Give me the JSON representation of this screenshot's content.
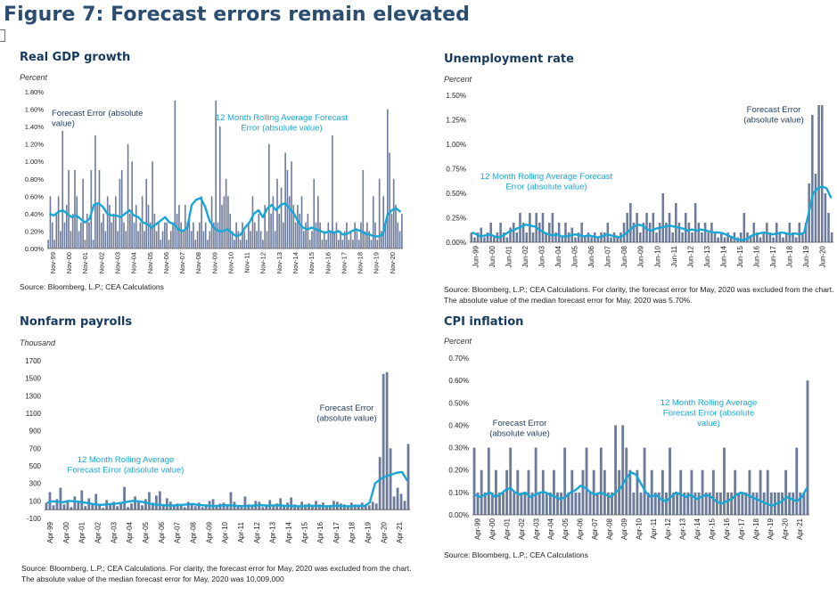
{
  "figure_title": "Figure 7: Forecast errors remain elevated",
  "colors": {
    "bars": "#6d7b9a",
    "line": "#17a6d6",
    "title": "#163a5f",
    "annotation": "#17a6d6"
  },
  "chart_data": [
    {
      "id": "gdp",
      "type": "bar",
      "title": "Real GDP growth",
      "unit_label": "Percent",
      "ylim": [
        0,
        1.8
      ],
      "y_ticks": [
        "0.00%",
        "0.20%",
        "0.40%",
        "0.60%",
        "0.80%",
        "1.00%",
        "1.20%",
        "1.40%",
        "1.60%",
        "1.80%"
      ],
      "x_tick_labels": [
        "Nov-99",
        "Nov-00",
        "Nov-01",
        "Nov-02",
        "Nov-03",
        "Nov-04",
        "Nov-05",
        "Nov-06",
        "Nov-07",
        "Nov-08",
        "Nov-09",
        "Nov-10",
        "Nov-11",
        "Nov-12",
        "Nov-13",
        "Nov-14",
        "Nov-15",
        "Nov-16",
        "Nov-17",
        "Nov-18",
        "Nov-19",
        "Nov-20"
      ],
      "x_start": "1999-11",
      "x_end": "2021-04",
      "series": [
        {
          "name": "Forecast Error (absolute value)",
          "kind": "bar",
          "values": [
            0.1,
            0.6,
            0.3,
            0.1,
            0.4,
            0.6,
            0.2,
            1.35,
            0.3,
            0.5,
            0.9,
            0.2,
            0.4,
            0.9,
            0.6,
            0.2,
            0.3,
            0.8,
            0.1,
            0.4,
            0.3,
            0.9,
            0.1,
            1.3,
            0.5,
            0.9,
            0.3,
            0.4,
            0.2,
            0.6,
            0.5,
            0.3,
            0.4,
            0.6,
            0.2,
            0.8,
            0.9,
            0.3,
            0.2,
            1.2,
            0.4,
            1.0,
            0.3,
            0.5,
            0.2,
            0.3,
            0.6,
            0.2,
            0.8,
            0.5,
            0.3,
            1.0,
            0.4,
            0.2,
            0.3,
            0.1,
            0.2,
            0.3,
            0.3,
            0.1,
            0.2,
            0.3,
            1.7,
            0.4,
            0.5,
            0.3,
            0.2,
            0.5,
            0.3,
            0.4,
            0.2,
            0.3,
            0.1,
            0.2,
            0.3,
            0.6,
            0.2,
            0.3,
            0.1,
            0.2,
            0.6,
            0.3,
            1.7,
            0.3,
            1.4,
            0.5,
            0.6,
            0.8,
            0.6,
            0.4,
            0.2,
            0.1,
            0.3,
            0.2,
            0.1,
            0.3,
            0.2,
            0.1,
            0.3,
            0.2,
            0.6,
            0.3,
            0.2,
            0.4,
            0.2,
            0.1,
            0.5,
            0.2,
            1.2,
            0.4,
            0.6,
            0.2,
            0.8,
            0.4,
            0.7,
            0.3,
            1.1,
            0.9,
            0.6,
            1.0,
            0.5,
            0.3,
            0.5,
            0.4,
            0.6,
            0.2,
            0.3,
            0.4,
            0.1,
            0.2,
            0.8,
            0.3,
            0.6,
            0.3,
            0.1,
            0.2,
            0.1,
            0.3,
            0.2,
            1.3,
            0.2,
            0.3,
            0.1,
            0.2,
            0.1,
            0.2,
            0.3,
            0.1,
            0.2,
            0.1,
            0.3,
            0.2,
            0.1,
            0.3,
            0.9,
            0.2,
            0.3,
            0.2,
            0.1,
            0.6,
            0.3,
            0.1,
            0.8,
            0.2,
            0.6,
            0.3,
            1.6,
            1.1,
            0.4,
            0.8,
            0.5,
            0.3,
            0.2,
            0.4
          ]
        },
        {
          "name": "12 Month Rolling Average Forecast Error (absolute value)",
          "kind": "line",
          "values": [
            0.4,
            0.38,
            0.42,
            0.44,
            0.4,
            0.36,
            0.38,
            0.34,
            0.3,
            0.34,
            0.5,
            0.52,
            0.48,
            0.4,
            0.38,
            0.38,
            0.36,
            0.4,
            0.44,
            0.38,
            0.36,
            0.3,
            0.28,
            0.24,
            0.28,
            0.32,
            0.36,
            0.3,
            0.28,
            0.22,
            0.2,
            0.24,
            0.5,
            0.56,
            0.58,
            0.48,
            0.32,
            0.24,
            0.2,
            0.2,
            0.22,
            0.18,
            0.14,
            0.16,
            0.24,
            0.3,
            0.4,
            0.44,
            0.36,
            0.46,
            0.5,
            0.44,
            0.5,
            0.52,
            0.46,
            0.4,
            0.3,
            0.24,
            0.22,
            0.24,
            0.22,
            0.2,
            0.18,
            0.2,
            0.18,
            0.2,
            0.16,
            0.17,
            0.2,
            0.22,
            0.2,
            0.17,
            0.16,
            0.14,
            0.14,
            0.16,
            0.38,
            0.44,
            0.46,
            0.42
          ]
        }
      ],
      "annotations": {
        "bars": "Forecast Error (absolute\nvalue)",
        "line": "12 Month Rolling Average Forecast\nError (absolute value)"
      },
      "source": "Source: Bloomberg, L.P.; CEA Calculations"
    },
    {
      "id": "unemployment",
      "type": "bar",
      "title": "Unemployment rate",
      "unit_label": "Percent",
      "ylim": [
        0,
        1.5
      ],
      "y_ticks": [
        "0.00%",
        "0.25%",
        "0.50%",
        "0.75%",
        "1.00%",
        "1.25%",
        "1.50%"
      ],
      "x_tick_labels": [
        "Jun-99",
        "Jun-00",
        "Jun-01",
        "Jun-02",
        "Jun-03",
        "Jun-04",
        "Jun-05",
        "Jun-06",
        "Jun-07",
        "Jun-08",
        "Jun-09",
        "Jun-10",
        "Jun-11",
        "Jun-12",
        "Jun-13",
        "Jun-14",
        "Jun-15",
        "Jun-16",
        "Jun-17",
        "Jun-18",
        "Jun-19",
        "Jun-20"
      ],
      "x_start": "1999-06",
      "x_end": "2021-04",
      "series": [
        {
          "name": "Forecast Error (absolute value)",
          "kind": "bar",
          "values": [
            0.1,
            0.05,
            0.1,
            0.15,
            0.05,
            0.1,
            0.2,
            0.05,
            0.1,
            0.2,
            0.1,
            0.05,
            0.15,
            0.2,
            0.1,
            0.3,
            0.2,
            0.1,
            0.3,
            0.1,
            0.3,
            0.2,
            0.3,
            0.1,
            0.2,
            0.3,
            0.1,
            0.2,
            0.05,
            0.2,
            0.1,
            0.15,
            0.05,
            0.1,
            0.2,
            0.05,
            0.1,
            0.05,
            0.1,
            0.05,
            0.1,
            0.1,
            0.2,
            0.05,
            0.1,
            0.05,
            0.1,
            0.2,
            0.3,
            0.4,
            0.2,
            0.3,
            0.1,
            0.2,
            0.3,
            0.2,
            0.3,
            0.1,
            0.2,
            0.5,
            0.2,
            0.3,
            0.1,
            0.4,
            0.2,
            0.1,
            0.3,
            0.2,
            0.1,
            0.4,
            0.2,
            0.1,
            0.2,
            0.1,
            0.2,
            0.1,
            0.05,
            0.1,
            0.05,
            0.1,
            0.05,
            0.1,
            0.05,
            0.1,
            0.3,
            0.1,
            0.05,
            0.2,
            0.1,
            0.05,
            0.1,
            0.2,
            0.1,
            0.05,
            0.2,
            0.1,
            0.05,
            0.1,
            0.2,
            0.1,
            0.05,
            0.2,
            0.1,
            0.2,
            0.6,
            1.3,
            0.7,
            1.4,
            1.4,
            0.5,
            0.3,
            0.1
          ]
        },
        {
          "name": "12 Month Rolling Average Forecast Error (absolute value)",
          "kind": "line",
          "values": [
            0.1,
            0.08,
            0.06,
            0.07,
            0.08,
            0.06,
            0.05,
            0.07,
            0.1,
            0.12,
            0.14,
            0.16,
            0.18,
            0.17,
            0.16,
            0.13,
            0.1,
            0.08,
            0.07,
            0.08,
            0.06,
            0.06,
            0.07,
            0.08,
            0.07,
            0.06,
            0.07,
            0.06,
            0.05,
            0.06,
            0.08,
            0.07,
            0.06,
            0.05,
            0.08,
            0.12,
            0.16,
            0.18,
            0.17,
            0.13,
            0.12,
            0.14,
            0.15,
            0.16,
            0.17,
            0.16,
            0.15,
            0.14,
            0.12,
            0.13,
            0.12,
            0.13,
            0.12,
            0.11,
            0.1,
            0.1,
            0.09,
            0.07,
            0.05,
            0.03,
            0.02,
            0.03,
            0.06,
            0.08,
            0.09,
            0.1,
            0.09,
            0.08,
            0.09,
            0.1,
            0.09,
            0.08,
            0.09,
            0.08,
            0.1,
            0.3,
            0.5,
            0.55,
            0.57,
            0.55,
            0.45
          ]
        }
      ],
      "annotations": {
        "bars": "Forecast Error\n(absolute value)",
        "line": "12 Month Rolling Average Forecast\nError (absolute value)"
      },
      "source": "Source: Bloomberg, L.P.; CEA Calculations. For clarity, the forecast error for May, 2020 was excluded from the chart.\nThe absolute value of the median forecast error for May, 2020 was 5.70%."
    },
    {
      "id": "payrolls",
      "type": "bar",
      "title": "Nonfarm payrolls",
      "unit_label": "Thousand",
      "ylim": [
        -100,
        1700
      ],
      "y_ticks": [
        "-100",
        "100",
        "300",
        "500",
        "700",
        "900",
        "1100",
        "1300",
        "1500",
        "1700"
      ],
      "x_tick_labels": [
        "Apr-99",
        "Apr-00",
        "Apr-01",
        "Apr-02",
        "Apr-03",
        "Apr-04",
        "Apr-05",
        "Apr-06",
        "Apr-07",
        "Apr-08",
        "Apr-09",
        "Apr-10",
        "Apr-11",
        "Apr-12",
        "Apr-13",
        "Apr-14",
        "Apr-15",
        "Apr-16",
        "Apr-17",
        "Apr-18",
        "Apr-19",
        "Apr-20",
        "Apr-21"
      ],
      "x_start": "1999-04",
      "x_end": "2021-04",
      "series": [
        {
          "name": "Forecast Error (absolute value)",
          "kind": "bar",
          "values": [
            80,
            200,
            50,
            120,
            250,
            60,
            100,
            30,
            150,
            90,
            220,
            40,
            130,
            70,
            180,
            50,
            20,
            110,
            60,
            90,
            40,
            80,
            260,
            30,
            70,
            150,
            100,
            50,
            120,
            200,
            80,
            160,
            210,
            60,
            130,
            90,
            40,
            70,
            50,
            30,
            90,
            60,
            40,
            80,
            30,
            60,
            100,
            120,
            40,
            70,
            80,
            60,
            200,
            90,
            50,
            30,
            150,
            60,
            40,
            100,
            90,
            30,
            60,
            110,
            50,
            70,
            130,
            40,
            80,
            140,
            60,
            50,
            90,
            60,
            70,
            40,
            100,
            60,
            80,
            50,
            40,
            100,
            90,
            70,
            60,
            50,
            80,
            60,
            40,
            80,
            60,
            50,
            90,
            70,
            600,
            1550,
            1570,
            700,
            150,
            250,
            180,
            100,
            750
          ]
        },
        {
          "name": "12 Month Rolling Average Forecast Error (absolute value)",
          "kind": "line",
          "values": [
            80,
            95,
            90,
            85,
            100,
            95,
            90,
            80,
            70,
            60,
            55,
            60,
            65,
            70,
            80,
            90,
            100,
            95,
            85,
            70,
            60,
            55,
            50,
            45,
            50,
            55,
            60,
            65,
            55,
            50,
            45,
            40,
            45,
            50,
            48,
            45,
            40,
            42,
            45,
            48,
            50,
            45,
            48,
            50,
            45,
            42,
            40,
            38,
            40,
            45,
            42,
            40,
            38,
            42,
            45,
            40,
            38,
            42,
            45,
            40,
            80,
            300,
            350,
            380,
            400,
            420,
            430,
            330
          ]
        }
      ],
      "annotations": {
        "bars": "Forecast Error\n(absolute value)",
        "line": "12 Month Rolling Average\nForecast Error (absolute value)"
      },
      "source": "Source: Bloomberg, L.P.; CEA Calculations. For clarity, the forecast error for May, 2020 was excluded from the chart.\nThe absolute value of the median forecast error for May, 2020 was 10,009,000"
    },
    {
      "id": "cpi",
      "type": "bar",
      "title": "CPI inflation",
      "unit_label": "Percent",
      "ylim": [
        0,
        0.7
      ],
      "y_ticks": [
        "0.00%",
        "0.10%",
        "0.20%",
        "0.30%",
        "0.40%",
        "0.50%",
        "0.60%",
        "0.70%"
      ],
      "x_tick_labels": [
        "Apr-99",
        "Apr-00",
        "Apr-01",
        "Apr-02",
        "Apr-03",
        "Apr-04",
        "Apr-05",
        "Apr-06",
        "Apr-07",
        "Apr-08",
        "Apr-09",
        "Apr-10",
        "Apr-11",
        "Apr-12",
        "Apr-13",
        "Apr-14",
        "Apr-15",
        "Apr-16",
        "Apr-17",
        "Apr-18",
        "Apr-19",
        "Apr-20",
        "Apr-21"
      ],
      "x_start": "1999-04",
      "x_end": "2021-04",
      "series": [
        {
          "name": "Forecast Error (absolute value)",
          "kind": "bar",
          "values": [
            0.3,
            0.1,
            0.2,
            0.1,
            0.3,
            0.1,
            0.2,
            0.1,
            0.1,
            0.2,
            0.3,
            0.1,
            0.2,
            0.1,
            0.1,
            0.2,
            0.1,
            0.3,
            0.1,
            0.2,
            0.1,
            0.1,
            0.2,
            0.1,
            0.1,
            0.3,
            0.1,
            0.2,
            0.1,
            0.1,
            0.2,
            0.3,
            0.1,
            0.2,
            0.1,
            0.3,
            0.2,
            0.1,
            0.1,
            0.4,
            0.2,
            0.4,
            0.3,
            0.2,
            0.1,
            0.2,
            0.1,
            0.3,
            0.1,
            0.2,
            0.1,
            0.1,
            0.2,
            0.1,
            0.3,
            0.1,
            0.1,
            0.2,
            0.1,
            0.1,
            0.2,
            0.1,
            0.1,
            0.2,
            0.1,
            0.1,
            0.2,
            0.1,
            0.1,
            0.3,
            0.1,
            0.1,
            0.2,
            0.1,
            0.1,
            0.1,
            0.2,
            0.1,
            0.1,
            0.2,
            0.1,
            0.2,
            0.1,
            0.1,
            0.1,
            0.1,
            0.2,
            0.1,
            0.1,
            0.3,
            0.1,
            0.1,
            0.6
          ]
        },
        {
          "name": "12 Month Rolling Average Forecast Error (absolute value)",
          "kind": "line",
          "values": [
            0.09,
            0.08,
            0.09,
            0.1,
            0.08,
            0.09,
            0.11,
            0.12,
            0.1,
            0.09,
            0.1,
            0.08,
            0.09,
            0.1,
            0.1,
            0.09,
            0.08,
            0.07,
            0.08,
            0.1,
            0.11,
            0.13,
            0.12,
            0.1,
            0.09,
            0.1,
            0.09,
            0.08,
            0.1,
            0.12,
            0.16,
            0.19,
            0.18,
            0.14,
            0.1,
            0.08,
            0.09,
            0.07,
            0.06,
            0.08,
            0.1,
            0.09,
            0.08,
            0.09,
            0.07,
            0.08,
            0.09,
            0.08,
            0.06,
            0.05,
            0.06,
            0.07,
            0.09,
            0.1,
            0.09,
            0.08,
            0.07,
            0.06,
            0.05,
            0.04,
            0.05,
            0.06,
            0.08,
            0.07,
            0.06,
            0.08,
            0.12
          ]
        }
      ],
      "annotations": {
        "bars": "Forecast Error\n(absolute value)",
        "line": "12 Month Rolling Average\nForecast Error (absolute\nvalue)"
      },
      "source": "Source: Bloomberg, L.P.; CEA Calculations"
    }
  ]
}
